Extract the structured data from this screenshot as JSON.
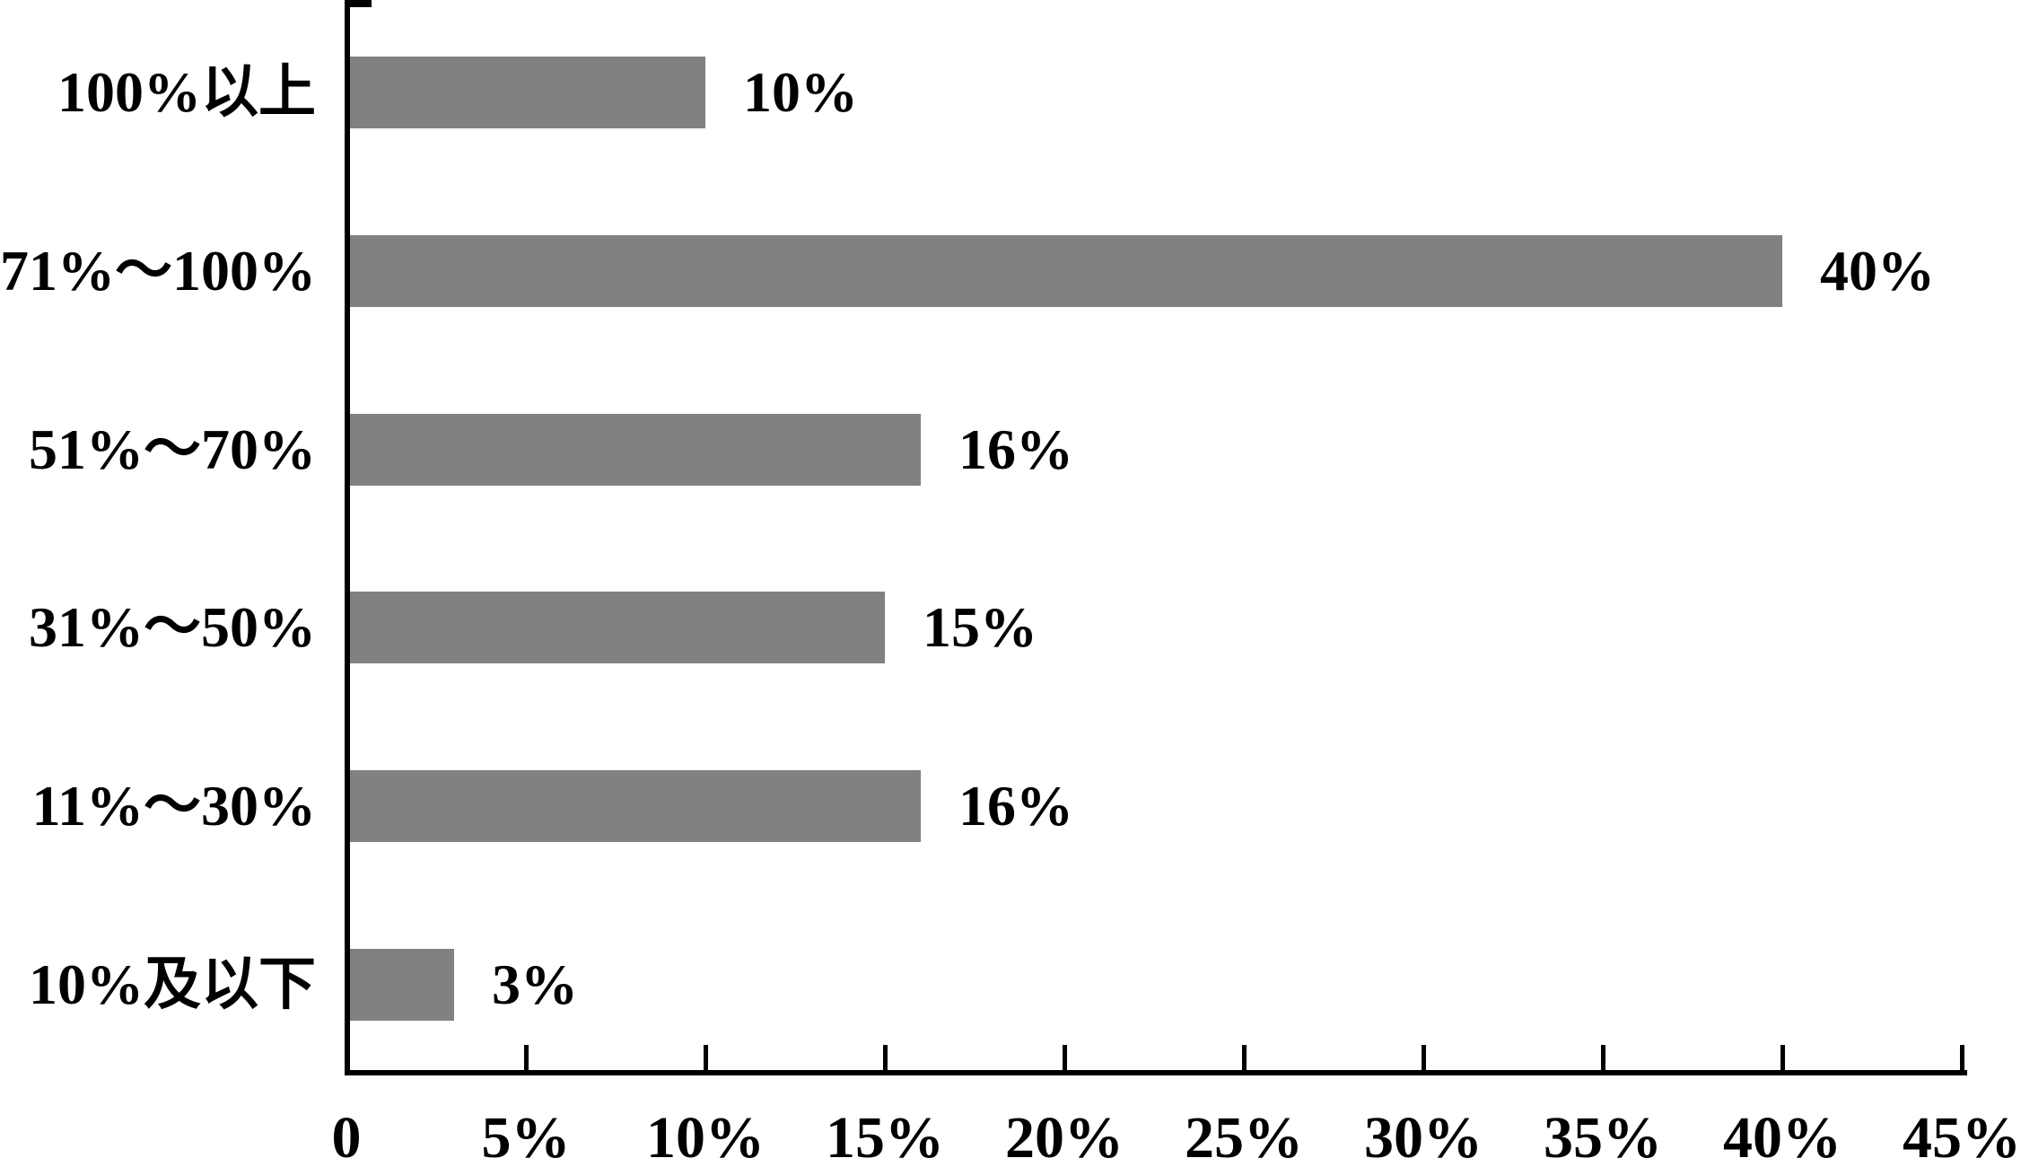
{
  "chart_data": {
    "type": "bar",
    "orientation": "horizontal",
    "title": "",
    "xlabel": "",
    "ylabel": "",
    "grid": false,
    "legend": false,
    "categories": [
      "100%以上",
      "71%～100%",
      "51%～70%",
      "31%～50%",
      "11%～30%",
      "10%及以下"
    ],
    "values": [
      10,
      40,
      16,
      15,
      16,
      3
    ],
    "bar_labels": [
      "10%",
      "40%",
      "16%",
      "15%",
      "16%",
      "3%"
    ],
    "x_tick_values": [
      0,
      5,
      10,
      15,
      20,
      25,
      30,
      35,
      40,
      45
    ],
    "x_tick_labels": [
      "0",
      "5%",
      "10%",
      "15%",
      "20%",
      "25%",
      "30%",
      "35%",
      "40%",
      "45%"
    ],
    "xlim": [
      0,
      45
    ],
    "bar_color": "#818181",
    "axis_color": "#000000",
    "text_color": "#000000",
    "background_color": "#ffffff"
  }
}
